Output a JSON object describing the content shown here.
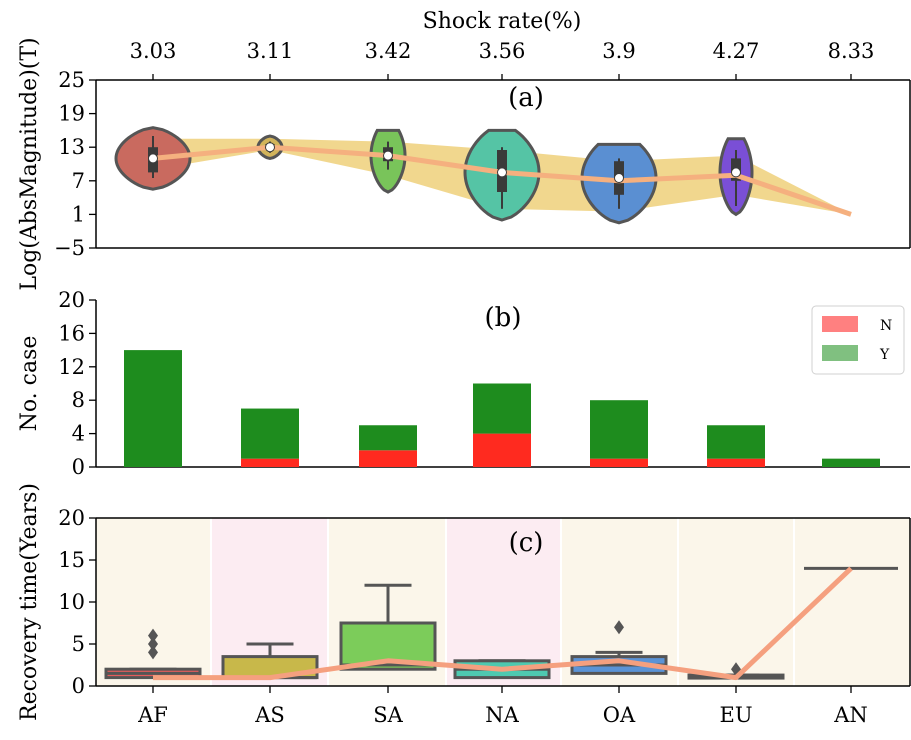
{
  "chart_data": [
    {
      "panel": "(a)",
      "type": "violin",
      "top_axis_title": "Shock rate(%)",
      "top_ticks": [
        "3.03",
        "3.11",
        "3.42",
        "3.56",
        "3.9",
        "4.27",
        "8.33"
      ],
      "ylabel": "Log(AbsMagnitude)(T)",
      "ylim": [
        -5,
        25
      ],
      "yticks": [
        -5,
        1,
        7,
        13,
        19,
        25
      ],
      "categories": [
        "AF",
        "AS",
        "SA",
        "NA",
        "OA",
        "EU",
        "AN"
      ],
      "distributions": [
        {
          "min": 5.5,
          "q1": 8.5,
          "median": 11.0,
          "q3": 13.0,
          "max": 16.5,
          "box_low": 7.5,
          "box_high": 15.0,
          "color": "#c96a5f"
        },
        {
          "min": 11.0,
          "q1": 12.5,
          "median": 13.0,
          "q3": 13.5,
          "max": 15.0,
          "box_low": 12.0,
          "box_high": 14.0,
          "color": "#d2b45a"
        },
        {
          "min": 5.0,
          "q1": 10.5,
          "median": 11.5,
          "q3": 13.0,
          "max": 16.0,
          "box_low": 9.0,
          "box_high": 14.0,
          "color": "#79c45a"
        },
        {
          "min": 0.0,
          "q1": 5.0,
          "median": 8.5,
          "q3": 12.5,
          "max": 16.0,
          "box_low": 2.0,
          "box_high": 13.0,
          "color": "#55c4a5"
        },
        {
          "min": -0.5,
          "q1": 4.5,
          "median": 7.5,
          "q3": 10.5,
          "max": 13.5,
          "box_low": 2.0,
          "box_high": 11.0,
          "color": "#5a8fd2"
        },
        {
          "min": 1.0,
          "q1": 7.0,
          "median": 8.5,
          "q3": 11.0,
          "max": 14.5,
          "box_low": 2.5,
          "box_high": 12.5,
          "color": "#7a4fd6"
        },
        {
          "min": 1.0,
          "q1": 1.0,
          "median": 1.0,
          "q3": 1.0,
          "max": 1.0,
          "box_low": 1.0,
          "box_high": 1.0,
          "color": "#8a8a8a"
        }
      ],
      "band": {
        "low": [
          9.0,
          12.5,
          8.0,
          2.0,
          1.5,
          4.5,
          1.0
        ],
        "high": [
          14.5,
          14.5,
          14.0,
          12.5,
          10.5,
          11.5,
          1.0
        ],
        "color": "#f0d382"
      },
      "mean_line": {
        "values": [
          11.0,
          13.0,
          11.5,
          8.5,
          7.0,
          8.0,
          1.0
        ],
        "color": "#f5b07f"
      }
    },
    {
      "panel": "(b)",
      "type": "stacked_bar",
      "ylabel": "No. case",
      "ylim": [
        0,
        20
      ],
      "yticks": [
        0,
        4,
        8,
        12,
        16,
        20
      ],
      "categories": [
        "AF",
        "AS",
        "SA",
        "NA",
        "OA",
        "EU",
        "AN"
      ],
      "series": [
        {
          "name": "N",
          "values": [
            0,
            1,
            2,
            4,
            1,
            1,
            0
          ],
          "color": "#ff2a1f"
        },
        {
          "name": "Y",
          "values": [
            14,
            6,
            3,
            6,
            7,
            4,
            1
          ],
          "color": "#1e8c1e"
        }
      ],
      "legend": {
        "position": "top-right",
        "entries": [
          {
            "label": "N",
            "color": "#ff8080"
          },
          {
            "label": "Y",
            "color": "#80c080"
          }
        ]
      }
    },
    {
      "panel": "(c)",
      "type": "box",
      "ylabel": "Recovery time(Years)",
      "ylim": [
        0,
        20
      ],
      "yticks": [
        0,
        5,
        10,
        15,
        20
      ],
      "categories": [
        "AF",
        "AS",
        "SA",
        "NA",
        "OA",
        "EU",
        "AN"
      ],
      "boxes": [
        {
          "wlow": 1,
          "q1": 1,
          "median": 1.5,
          "q3": 2,
          "whigh": 2,
          "outliers": [
            4,
            5,
            6
          ],
          "color": "#e45c5c"
        },
        {
          "wlow": 1,
          "q1": 1,
          "median": 1,
          "q3": 3.5,
          "whigh": 5,
          "outliers": [],
          "color": "#c8b84a"
        },
        {
          "wlow": 1,
          "q1": 2,
          "median": 2.5,
          "q3": 7.5,
          "whigh": 12,
          "outliers": [],
          "color": "#7ccc5a"
        },
        {
          "wlow": 1,
          "q1": 1,
          "median": 2,
          "q3": 3,
          "whigh": 3,
          "outliers": [],
          "color": "#4ec9b0"
        },
        {
          "wlow": 1,
          "q1": 1.5,
          "median": 2.5,
          "q3": 3.5,
          "whigh": 4,
          "outliers": [
            7
          ],
          "color": "#5a93d6"
        },
        {
          "wlow": 1,
          "q1": 1,
          "median": 1,
          "q3": 1.3,
          "whigh": 1.3,
          "outliers": [
            2
          ],
          "color": "#7a55c8"
        },
        {
          "wlow": 14,
          "q1": 14,
          "median": 14,
          "q3": 14,
          "whigh": 14,
          "outliers": [],
          "color": "#8a8a8a"
        }
      ],
      "bg_colors": [
        "#fbf6ea",
        "#fcecf2",
        "#fbf6ea",
        "#fcecf2",
        "#fbf6ea",
        "#fbf6ea",
        "#fbf6ea"
      ],
      "line": {
        "values": [
          1,
          1,
          3,
          2,
          3,
          1,
          14
        ],
        "color": "#f5a07f"
      }
    }
  ]
}
